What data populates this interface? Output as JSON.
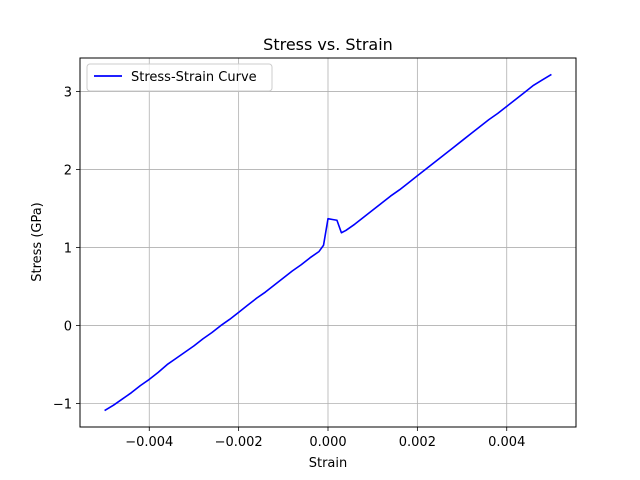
{
  "chart_data": {
    "type": "line",
    "title": "Stress vs. Strain",
    "xlabel": "Strain",
    "ylabel": "Stress (GPa)",
    "xlim": [
      -0.00555,
      0.00555
    ],
    "ylim": [
      -1.3,
      3.43
    ],
    "xticks": [
      -0.004,
      -0.002,
      0.0,
      0.002,
      0.004
    ],
    "xtick_labels": [
      "−0.004",
      "−0.002",
      "0.000",
      "0.002",
      "0.004"
    ],
    "yticks": [
      -1,
      0,
      1,
      2,
      3
    ],
    "ytick_labels": [
      "−1",
      "0",
      "1",
      "2",
      "3"
    ],
    "grid": true,
    "legend_position": "top-left",
    "series": [
      {
        "name": "Stress-Strain Curve",
        "color": "#0000ff",
        "x": [
          -0.005,
          -0.0048,
          -0.0046,
          -0.0044,
          -0.0042,
          -0.004,
          -0.0038,
          -0.0036,
          -0.0034,
          -0.0032,
          -0.003,
          -0.0028,
          -0.0026,
          -0.0024,
          -0.0022,
          -0.002,
          -0.0018,
          -0.0016,
          -0.0014,
          -0.0012,
          -0.001,
          -0.0008,
          -0.0006,
          -0.0004,
          -0.0002,
          -0.0001,
          0.0,
          0.0001,
          0.0002,
          0.0003,
          0.0004,
          0.0006,
          0.0008,
          0.001,
          0.0012,
          0.0014,
          0.0016,
          0.0018,
          0.002,
          0.0022,
          0.0024,
          0.0026,
          0.0028,
          0.003,
          0.0032,
          0.0034,
          0.0036,
          0.0038,
          0.004,
          0.0042,
          0.0044,
          0.0046,
          0.0048,
          0.005
        ],
        "y": [
          -1.09,
          -1.02,
          -0.94,
          -0.86,
          -0.77,
          -0.69,
          -0.6,
          -0.5,
          -0.42,
          -0.34,
          -0.26,
          -0.17,
          -0.09,
          0.0,
          0.08,
          0.17,
          0.26,
          0.35,
          0.43,
          0.52,
          0.61,
          0.7,
          0.78,
          0.87,
          0.95,
          1.03,
          1.37,
          1.36,
          1.35,
          1.19,
          1.22,
          1.3,
          1.39,
          1.48,
          1.57,
          1.66,
          1.74,
          1.83,
          1.92,
          2.01,
          2.1,
          2.19,
          2.28,
          2.37,
          2.46,
          2.55,
          2.64,
          2.72,
          2.81,
          2.9,
          2.99,
          3.08,
          3.15,
          3.22
        ]
      }
    ]
  }
}
